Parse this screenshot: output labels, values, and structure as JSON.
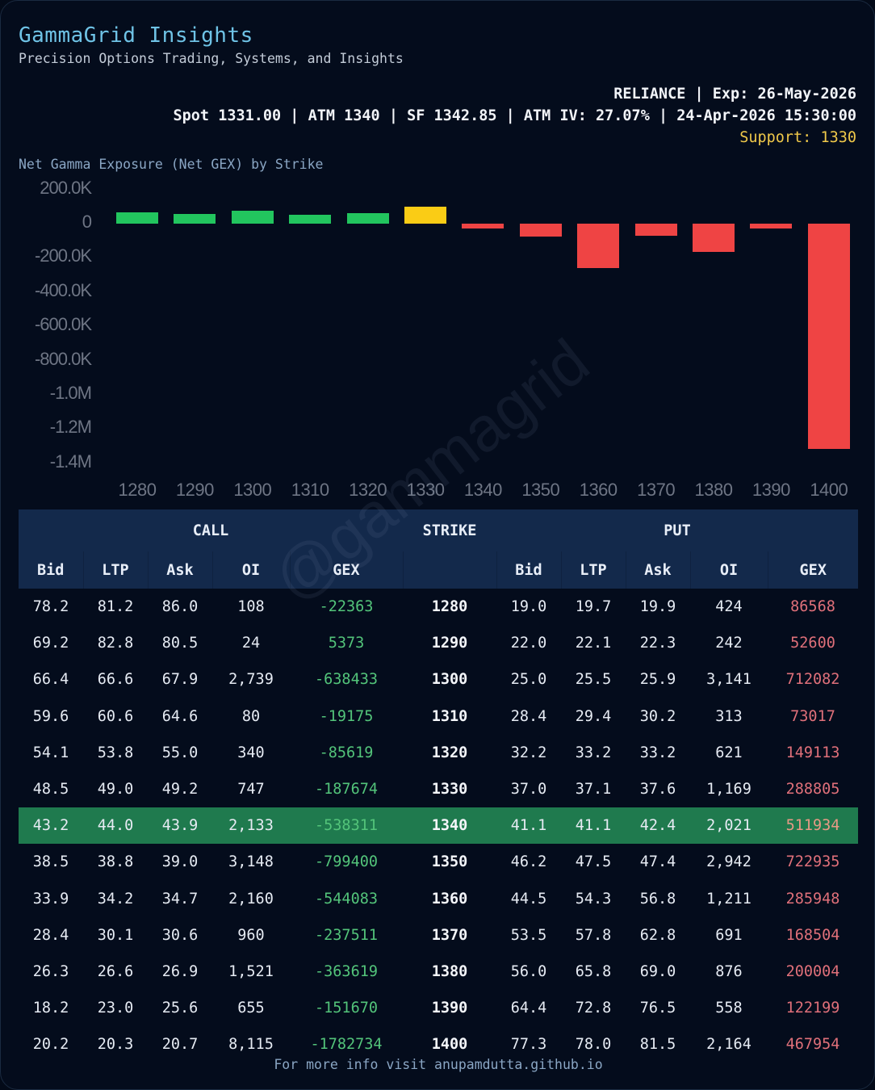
{
  "header": {
    "brand": "GammaGrid Insights",
    "tagline": "Precision Options Trading, Systems, and Insights",
    "meta_line1": "RELIANCE | Exp: 26-May-2026",
    "meta_line2": "Spot 1331.00 | ATM 1340 | SF 1342.85 | ATM IV: 27.07% | 24-Apr-2026 15:30:00",
    "support": "Support: 1330"
  },
  "chart_title": "Net Gamma Exposure (Net GEX) by Strike",
  "chart_data": {
    "type": "bar",
    "title": "Net Gamma Exposure (Net GEX) by Strike",
    "xlabel": "",
    "ylabel": "",
    "categories": [
      "1280",
      "1290",
      "1300",
      "1310",
      "1320",
      "1330",
      "1340",
      "1350",
      "1360",
      "1370",
      "1380",
      "1390",
      "1400"
    ],
    "values": [
      64205,
      57973,
      73649,
      53842,
      63494,
      101131,
      -26377,
      -76465,
      -258135,
      -69007,
      -163615,
      -29471,
      -1314780
    ],
    "bar_colors": [
      "#22c55e",
      "#22c55e",
      "#22c55e",
      "#22c55e",
      "#22c55e",
      "#facc15",
      "#ef4444",
      "#ef4444",
      "#ef4444",
      "#ef4444",
      "#ef4444",
      "#ef4444",
      "#ef4444"
    ],
    "highlight": {
      "strike": "1330",
      "label": "Support",
      "color": "#facc15"
    },
    "ylim": [
      -1400000,
      200000
    ],
    "yticks": [
      "200.0K",
      "0",
      "-200.0K",
      "-400.0K",
      "-600.0K",
      "-800.0K",
      "-1.0M",
      "-1.2M",
      "-1.4M"
    ],
    "grid": false,
    "legend": null
  },
  "watermark": "@gammagrid",
  "table": {
    "group_headers": {
      "call": "CALL",
      "strike": "STRIKE",
      "put": "PUT"
    },
    "call_columns": [
      "Bid",
      "LTP",
      "Ask",
      "OI",
      "GEX"
    ],
    "put_columns": [
      "Bid",
      "LTP",
      "Ask",
      "OI",
      "GEX"
    ],
    "atm_strike": "1340",
    "rows": [
      {
        "call": [
          "78.2",
          "81.2",
          "86.0",
          "108",
          "-22363"
        ],
        "strike": "1280",
        "put": [
          "19.0",
          "19.7",
          "19.9",
          "424",
          "86568"
        ]
      },
      {
        "call": [
          "69.2",
          "82.8",
          "80.5",
          "24",
          "5373"
        ],
        "strike": "1290",
        "put": [
          "22.0",
          "22.1",
          "22.3",
          "242",
          "52600"
        ]
      },
      {
        "call": [
          "66.4",
          "66.6",
          "67.9",
          "2,739",
          "-638433"
        ],
        "strike": "1300",
        "put": [
          "25.0",
          "25.5",
          "25.9",
          "3,141",
          "712082"
        ]
      },
      {
        "call": [
          "59.6",
          "60.6",
          "64.6",
          "80",
          "-19175"
        ],
        "strike": "1310",
        "put": [
          "28.4",
          "29.4",
          "30.2",
          "313",
          "73017"
        ]
      },
      {
        "call": [
          "54.1",
          "53.8",
          "55.0",
          "340",
          "-85619"
        ],
        "strike": "1320",
        "put": [
          "32.2",
          "33.2",
          "33.2",
          "621",
          "149113"
        ]
      },
      {
        "call": [
          "48.5",
          "49.0",
          "49.2",
          "747",
          "-187674"
        ],
        "strike": "1330",
        "put": [
          "37.0",
          "37.1",
          "37.6",
          "1,169",
          "288805"
        ]
      },
      {
        "call": [
          "43.2",
          "44.0",
          "43.9",
          "2,133",
          "-538311"
        ],
        "strike": "1340",
        "put": [
          "41.1",
          "41.1",
          "42.4",
          "2,021",
          "511934"
        ]
      },
      {
        "call": [
          "38.5",
          "38.8",
          "39.0",
          "3,148",
          "-799400"
        ],
        "strike": "1350",
        "put": [
          "46.2",
          "47.5",
          "47.4",
          "2,942",
          "722935"
        ]
      },
      {
        "call": [
          "33.9",
          "34.2",
          "34.7",
          "2,160",
          "-544083"
        ],
        "strike": "1360",
        "put": [
          "44.5",
          "54.3",
          "56.8",
          "1,211",
          "285948"
        ]
      },
      {
        "call": [
          "28.4",
          "30.1",
          "30.6",
          "960",
          "-237511"
        ],
        "strike": "1370",
        "put": [
          "53.5",
          "57.8",
          "62.8",
          "691",
          "168504"
        ]
      },
      {
        "call": [
          "26.3",
          "26.6",
          "26.9",
          "1,521",
          "-363619"
        ],
        "strike": "1380",
        "put": [
          "56.0",
          "65.8",
          "69.0",
          "876",
          "200004"
        ]
      },
      {
        "call": [
          "18.2",
          "23.0",
          "25.6",
          "655",
          "-151670"
        ],
        "strike": "1390",
        "put": [
          "64.4",
          "72.8",
          "76.5",
          "558",
          "122199"
        ]
      },
      {
        "call": [
          "20.2",
          "20.3",
          "20.7",
          "8,115",
          "-1782734"
        ],
        "strike": "1400",
        "put": [
          "77.3",
          "78.0",
          "81.5",
          "2,164",
          "467954"
        ]
      }
    ]
  },
  "footer": "For more info visit anupamdutta.github.io"
}
